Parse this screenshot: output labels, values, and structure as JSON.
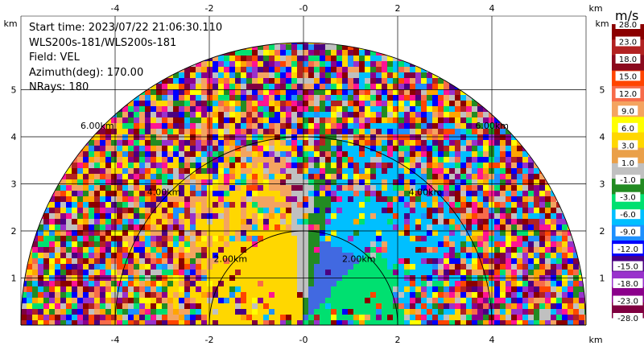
{
  "chart_data": {
    "type": "heatmap",
    "subtype": "radar-rhi-sector",
    "info": {
      "start_time": "Start time: 2023/07/22 21:06:30.110",
      "instrument": "WLS200s-181/WLS200s-181",
      "field": "Field: VEL",
      "azimuth": "Azimuth(deg): 170.00",
      "nrays": "NRays: 180"
    },
    "x_axis": {
      "unit_label": "km",
      "ticks": [
        "-4",
        "-2",
        "-0",
        "2",
        "4"
      ],
      "tick_values": [
        -4,
        -2,
        0,
        2,
        4
      ],
      "range": [
        -6,
        6
      ]
    },
    "y_axis": {
      "unit_label": "km",
      "ticks": [
        "1",
        "2",
        "3",
        "4",
        "5"
      ],
      "tick_values": [
        1,
        2,
        3,
        4,
        5
      ],
      "range": [
        0,
        5.9
      ]
    },
    "range_rings": {
      "values_km": [
        2,
        4,
        6
      ],
      "labels": [
        "2.00km",
        "4.00km",
        "6.00km"
      ]
    },
    "colorbar": {
      "unit": "m/s",
      "labels": [
        "28.0",
        "23.0",
        "18.0",
        "15.0",
        "12.0",
        "9.0",
        "6.0",
        "3.0",
        "1.0",
        "-1.0",
        "-3.0",
        "-6.0",
        "-9.0",
        "-12.0",
        "-15.0",
        "-18.0",
        "-23.0",
        "-28.0"
      ],
      "colors": [
        "#8b0000",
        "#b22222",
        "#8b0a1e",
        "#ff4500",
        "#f76b4a",
        "#f4a460",
        "#ffff00",
        "#ffd700",
        "#eaa049",
        "#c0c0c0",
        "#228b22",
        "#00e070",
        "#00bfff",
        "#1e90ff",
        "#0000ff",
        "#4b0082",
        "#9932cc",
        "#8b008b",
        "#800040"
      ]
    },
    "grid": true,
    "regions": [
      {
        "name": "near-left",
        "r": [
          0,
          2.2
        ],
        "el": [
          90,
          180
        ],
        "color": "#ffd700"
      },
      {
        "name": "near-center",
        "r": [
          0,
          2.0
        ],
        "el": [
          84,
          96
        ],
        "color": "#c0c0c0"
      },
      {
        "name": "near-right-green",
        "r": [
          0,
          2.0
        ],
        "el": [
          60,
          84
        ],
        "color": "#228b22"
      },
      {
        "name": "near-right-blue",
        "r": [
          0,
          2.2
        ],
        "el": [
          20,
          60
        ],
        "color": "#4169e1"
      }
    ]
  }
}
